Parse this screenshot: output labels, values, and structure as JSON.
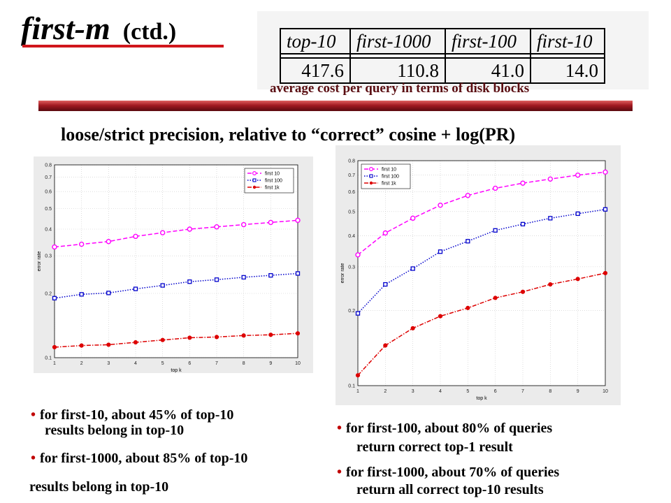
{
  "slide": {
    "title_main": "first-m",
    "title_suffix": "(ctd.)",
    "subtitle": "loose/strict precision, relative to “correct” cosine + log(PR)",
    "accent_color": "#a31a22"
  },
  "cost_table": {
    "headers": [
      "top-10",
      "first-1000",
      "first-100",
      "first-10"
    ],
    "values": [
      "417.6",
      "110.8",
      "41.0",
      "14.0"
    ],
    "caption": "average cost per query in terms of disk blocks"
  },
  "bullets_left": [
    {
      "line1": "for first-10, about 45% of top-10",
      "line2": "results belong in top-10"
    },
    {
      "line1": "for first-1000, about 85% of top-10",
      "line2": "results belong in top-10"
    }
  ],
  "bullets_right": [
    {
      "line1": "for first-100, about 80% of queries",
      "line2": "return correct top-1 result"
    },
    {
      "line1": "for first-1000, about 70% of queries",
      "line2": "return all correct top-10 results"
    }
  ],
  "chart_data": [
    {
      "type": "line",
      "x": [
        1,
        2,
        3,
        4,
        5,
        6,
        7,
        8,
        9,
        10
      ],
      "xlabel": "top k",
      "ylabel": "error rate",
      "yscale": "log",
      "ylim": [
        0.1,
        0.8
      ],
      "xlim": [
        1,
        10
      ],
      "yticks": [
        0.1,
        0.2,
        0.3,
        0.4,
        0.5,
        0.6,
        0.7,
        0.8
      ],
      "xticks": [
        1,
        2,
        3,
        4,
        5,
        6,
        7,
        8,
        9,
        10
      ],
      "legend_position": "top-right",
      "series": [
        {
          "name": "first 10",
          "color": "#ff00ff",
          "style": "dashed",
          "marker": "circle",
          "values": [
            0.33,
            0.34,
            0.35,
            0.37,
            0.385,
            0.4,
            0.41,
            0.42,
            0.43,
            0.44
          ]
        },
        {
          "name": "first 100",
          "color": "#0000cc",
          "style": "dotted",
          "marker": "square",
          "values": [
            0.19,
            0.198,
            0.201,
            0.21,
            0.218,
            0.227,
            0.232,
            0.238,
            0.243,
            0.248
          ]
        },
        {
          "name": "first 1k",
          "color": "#dd0000",
          "style": "dashdot",
          "marker": "dot",
          "values": [
            0.112,
            0.114,
            0.115,
            0.118,
            0.121,
            0.124,
            0.125,
            0.127,
            0.128,
            0.13
          ]
        }
      ]
    },
    {
      "type": "line",
      "x": [
        1,
        2,
        3,
        4,
        5,
        6,
        7,
        8,
        9,
        10
      ],
      "xlabel": "top k",
      "ylabel": "error rate",
      "yscale": "log",
      "ylim": [
        0.1,
        0.8
      ],
      "xlim": [
        1,
        10
      ],
      "yticks": [
        0.1,
        0.2,
        0.3,
        0.4,
        0.5,
        0.6,
        0.7,
        0.8
      ],
      "xticks": [
        1,
        2,
        3,
        4,
        5,
        6,
        7,
        8,
        9,
        10
      ],
      "legend_position": "top-left",
      "series": [
        {
          "name": "first 10",
          "color": "#ff00ff",
          "style": "dashed",
          "marker": "circle",
          "values": [
            0.335,
            0.41,
            0.47,
            0.53,
            0.58,
            0.62,
            0.65,
            0.675,
            0.7,
            0.72
          ]
        },
        {
          "name": "first 100",
          "color": "#0000cc",
          "style": "dotted",
          "marker": "square",
          "values": [
            0.195,
            0.255,
            0.295,
            0.345,
            0.38,
            0.42,
            0.445,
            0.47,
            0.49,
            0.51
          ]
        },
        {
          "name": "first 1k",
          "color": "#dd0000",
          "style": "dashdot",
          "marker": "dot",
          "values": [
            0.11,
            0.145,
            0.17,
            0.19,
            0.205,
            0.225,
            0.238,
            0.255,
            0.268,
            0.283
          ]
        }
      ]
    }
  ]
}
